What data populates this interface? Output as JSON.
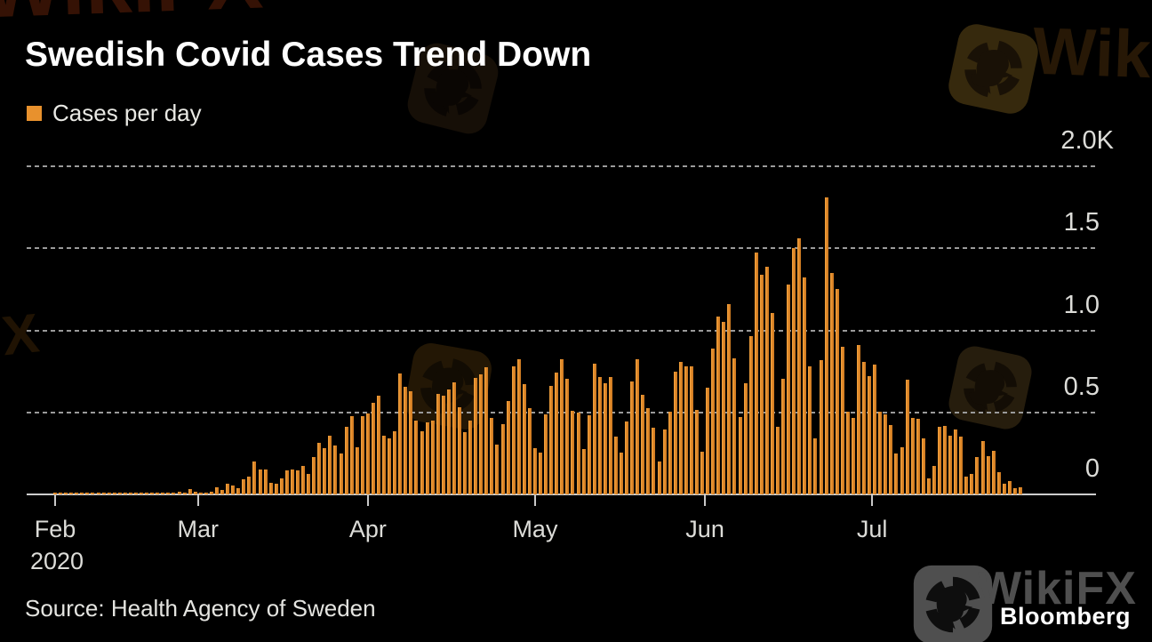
{
  "header": {
    "title": "Swedish Covid Cases Trend Down"
  },
  "legend": {
    "label": "Cases per day",
    "swatch_color": "#E8912D"
  },
  "chart_data": {
    "type": "bar",
    "title": "Swedish Covid Cases Trend Down",
    "series_name": "Cases per day",
    "unit": "cases per day",
    "x_start_label": "Feb 2020",
    "x_end_label": "late Jul 2020",
    "ylim": [
      0,
      2000
    ],
    "grid": "horizontal dotted gridlines",
    "legend_position": "top-left",
    "bar_color": "#E1892B",
    "yticks": [
      {
        "value": 0,
        "label": "0"
      },
      {
        "value": 500,
        "label": "0.5"
      },
      {
        "value": 1000,
        "label": "1.0"
      },
      {
        "value": 1500,
        "label": "1.5"
      },
      {
        "value": 2000,
        "label": "2.0K"
      }
    ],
    "xticks": [
      {
        "label": "Feb",
        "sublabel": "2020",
        "day_index": 0
      },
      {
        "label": "Mar",
        "day_index": 26.5
      },
      {
        "label": "Apr",
        "day_index": 58
      },
      {
        "label": "May",
        "day_index": 89
      },
      {
        "label": "Jun",
        "day_index": 120.5
      },
      {
        "label": "Jul",
        "day_index": 151.5
      }
    ],
    "values": [
      4,
      3,
      5,
      4,
      6,
      5,
      4,
      6,
      5,
      7,
      6,
      8,
      7,
      5,
      8,
      9,
      7,
      10,
      9,
      8,
      11,
      13,
      10,
      14,
      12,
      30,
      18,
      12,
      9,
      15,
      45,
      25,
      63,
      55,
      40,
      90,
      108,
      198,
      153,
      150,
      72,
      63,
      99,
      144,
      153,
      144,
      171,
      126,
      225,
      315,
      280,
      360,
      297,
      252,
      414,
      477,
      288,
      477,
      495,
      558,
      603,
      360,
      342,
      387,
      738,
      657,
      630,
      450,
      387,
      441,
      450,
      612,
      603,
      639,
      684,
      531,
      378,
      450,
      711,
      729,
      774,
      468,
      306,
      430,
      567,
      783,
      822,
      670,
      526,
      283,
      256,
      490,
      660,
      742,
      822,
      706,
      508,
      499,
      274,
      481,
      796,
      715,
      679,
      715,
      355,
      256,
      445,
      688,
      822,
      607,
      526,
      409,
      202,
      396,
      504,
      750,
      810,
      778,
      778,
      513,
      261,
      648,
      891,
      1084,
      1053,
      1161,
      828,
      472,
      675,
      963,
      1476,
      1341,
      1386,
      1107,
      414,
      706,
      1278,
      1503,
      1561,
      1320,
      783,
      342,
      819,
      1809,
      1350,
      1251,
      900,
      504,
      468,
      909,
      810,
      720,
      790,
      504,
      486,
      423,
      252,
      288,
      697,
      468,
      459,
      342,
      99,
      171,
      410,
      419,
      360,
      396,
      351,
      108,
      126,
      225,
      324,
      234,
      264,
      135,
      63,
      81,
      36,
      45
    ]
  },
  "footer": {
    "source": "Source: Health Agency of Sweden",
    "brand": "Bloomberg"
  },
  "watermark": {
    "name": "WikiFX",
    "text": "WikiFX"
  }
}
